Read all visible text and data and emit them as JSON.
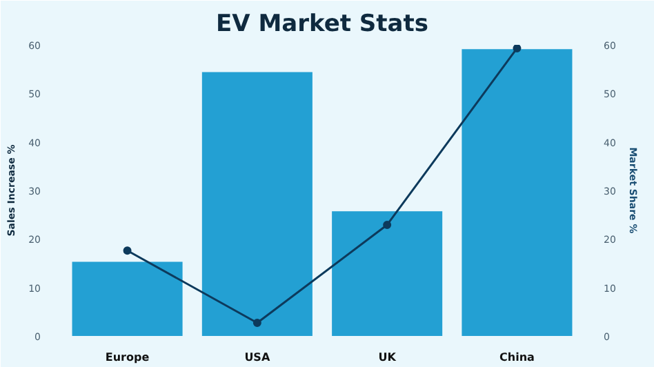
{
  "chart_data": {
    "type": "bar",
    "title": "EV Market Stats",
    "ylabel": "Sales Increase %",
    "y2label": "Market Share %",
    "categories": [
      "Europe",
      "USA",
      "UK",
      "China"
    ],
    "series": [
      {
        "name": null,
        "color": "#23a0d3",
        "values": [
          15.3,
          54.4,
          25.7,
          59.1
        ]
      },
      {
        "name": null,
        "type": "line",
        "color": "#0d3a5c",
        "values": [
          17.6,
          2.7,
          22.9,
          59.3
        ]
      }
    ],
    "ylim": [
      0,
      60
    ],
    "yticks": [
      0,
      10,
      20,
      30,
      40,
      50,
      60
    ],
    "y2lim": [
      0,
      60
    ],
    "y2ticks": [
      0,
      10,
      20,
      30,
      40,
      50,
      60
    ],
    "grid": false,
    "marker": "circle",
    "line_style": "solid"
  }
}
